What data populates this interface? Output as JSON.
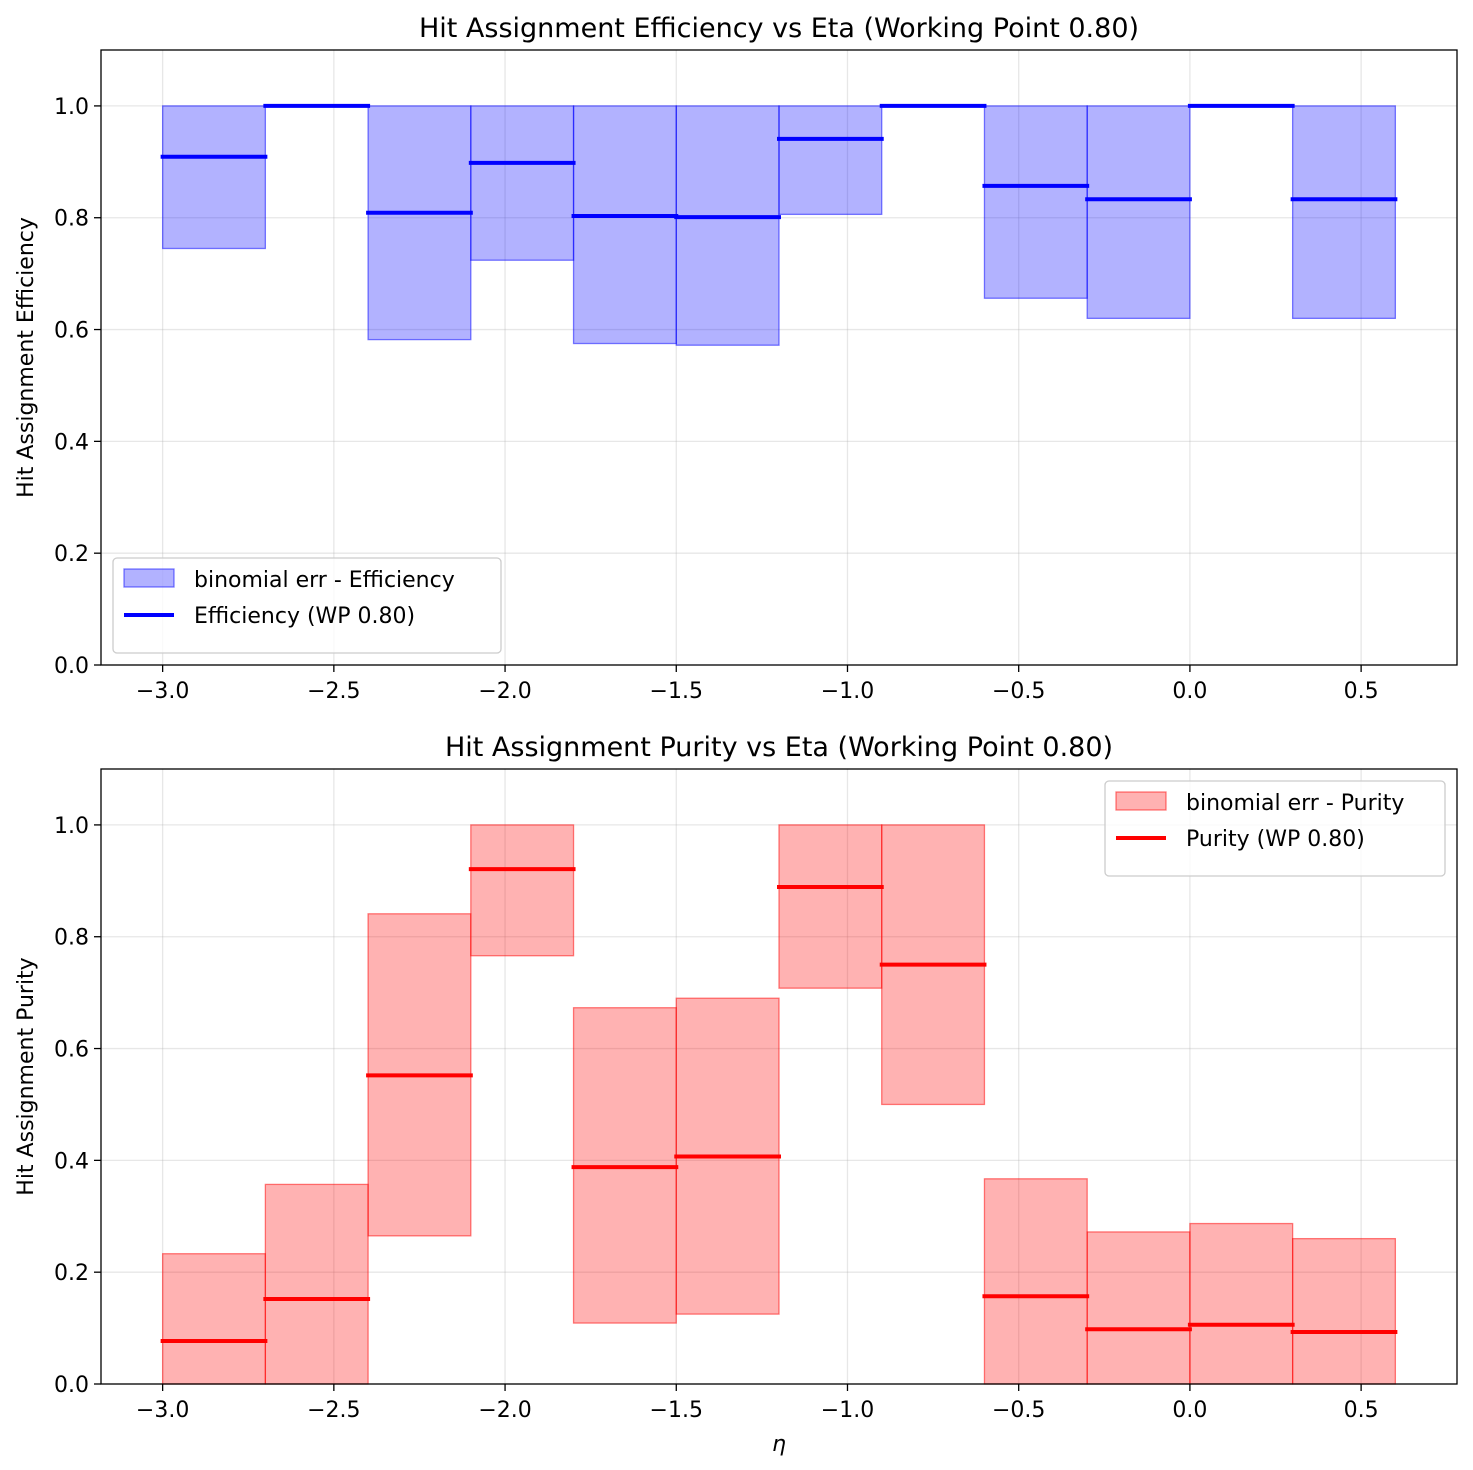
{
  "chart_data": [
    {
      "type": "bar",
      "title": "Hit Assignment Efficiency vs Eta (Working Point 0.80)",
      "xlabel": "",
      "ylabel": "Hit Assignment Efficiency",
      "xlim": [
        -3.18,
        0.78
      ],
      "ylim": [
        0.0,
        1.1
      ],
      "xticks": [
        -3.0,
        -2.5,
        -2.0,
        -1.5,
        -1.0,
        -0.5,
        0.0,
        0.5
      ],
      "xtick_labels": [
        "−3.0",
        "−2.5",
        "−2.0",
        "−1.5",
        "−1.0",
        "−0.5",
        "0.0",
        "0.5"
      ],
      "yticks": [
        0.0,
        0.2,
        0.4,
        0.6,
        0.8,
        1.0
      ],
      "ytick_labels": [
        "0.0",
        "0.2",
        "0.4",
        "0.6",
        "0.8",
        "1.0"
      ],
      "grid": true,
      "legend_loc": "lower-left",
      "fill_color": "#0000ff",
      "line_color": "#0000ff",
      "legend": [
        "binomial err - Efficiency",
        "Efficiency (WP 0.80)"
      ],
      "bins": [
        {
          "x0": -3.0,
          "x1": -2.7,
          "value": 0.909,
          "lo": 0.745,
          "hi": 1.0
        },
        {
          "x0": -2.7,
          "x1": -2.4,
          "value": 1.0,
          "lo": 1.0,
          "hi": 1.0
        },
        {
          "x0": -2.4,
          "x1": -2.1,
          "value": 0.809,
          "lo": 0.582,
          "hi": 1.0
        },
        {
          "x0": -2.1,
          "x1": -1.8,
          "value": 0.898,
          "lo": 0.724,
          "hi": 1.0
        },
        {
          "x0": -1.8,
          "x1": -1.5,
          "value": 0.803,
          "lo": 0.575,
          "hi": 1.0
        },
        {
          "x0": -1.5,
          "x1": -1.2,
          "value": 0.801,
          "lo": 0.572,
          "hi": 1.0
        },
        {
          "x0": -1.2,
          "x1": -0.9,
          "value": 0.941,
          "lo": 0.806,
          "hi": 1.0
        },
        {
          "x0": -0.9,
          "x1": -0.6,
          "value": 1.0,
          "lo": 1.0,
          "hi": 1.0
        },
        {
          "x0": -0.6,
          "x1": -0.3,
          "value": 0.857,
          "lo": 0.656,
          "hi": 1.0
        },
        {
          "x0": -0.3,
          "x1": 0.0,
          "value": 0.833,
          "lo": 0.62,
          "hi": 1.0
        },
        {
          "x0": 0.0,
          "x1": 0.3,
          "value": 1.0,
          "lo": 1.0,
          "hi": 1.0
        },
        {
          "x0": 0.3,
          "x1": 0.6,
          "value": 0.833,
          "lo": 0.62,
          "hi": 1.0
        }
      ]
    },
    {
      "type": "bar",
      "title": "Hit Assignment Purity vs Eta (Working Point 0.80)",
      "xlabel": "η",
      "ylabel": "Hit Assignment Purity",
      "xlim": [
        -3.18,
        0.78
      ],
      "ylim": [
        0.0,
        1.1
      ],
      "xticks": [
        -3.0,
        -2.5,
        -2.0,
        -1.5,
        -1.0,
        -0.5,
        0.0,
        0.5
      ],
      "xtick_labels": [
        "−3.0",
        "−2.5",
        "−2.0",
        "−1.5",
        "−1.0",
        "−0.5",
        "0.0",
        "0.5"
      ],
      "yticks": [
        0.0,
        0.2,
        0.4,
        0.6,
        0.8,
        1.0
      ],
      "ytick_labels": [
        "0.0",
        "0.2",
        "0.4",
        "0.6",
        "0.8",
        "1.0"
      ],
      "grid": true,
      "legend_loc": "upper-right",
      "fill_color": "#ff0000",
      "line_color": "#ff0000",
      "legend": [
        "binomial err - Purity",
        "Purity (WP 0.80)"
      ],
      "bins": [
        {
          "x0": -3.0,
          "x1": -2.7,
          "value": 0.077,
          "lo": 0.0,
          "hi": 0.233
        },
        {
          "x0": -2.7,
          "x1": -2.4,
          "value": 0.152,
          "lo": 0.0,
          "hi": 0.357
        },
        {
          "x0": -2.4,
          "x1": -2.1,
          "value": 0.552,
          "lo": 0.265,
          "hi": 0.841
        },
        {
          "x0": -2.1,
          "x1": -1.8,
          "value": 0.921,
          "lo": 0.766,
          "hi": 1.0
        },
        {
          "x0": -1.8,
          "x1": -1.5,
          "value": 0.388,
          "lo": 0.109,
          "hi": 0.673
        },
        {
          "x0": -1.5,
          "x1": -1.2,
          "value": 0.407,
          "lo": 0.125,
          "hi": 0.69
        },
        {
          "x0": -1.2,
          "x1": -0.9,
          "value": 0.889,
          "lo": 0.708,
          "hi": 1.0
        },
        {
          "x0": -0.9,
          "x1": -0.6,
          "value": 0.75,
          "lo": 0.5,
          "hi": 1.0
        },
        {
          "x0": -0.6,
          "x1": -0.3,
          "value": 0.157,
          "lo": 0.0,
          "hi": 0.367
        },
        {
          "x0": -0.3,
          "x1": 0.0,
          "value": 0.098,
          "lo": 0.0,
          "hi": 0.272
        },
        {
          "x0": 0.0,
          "x1": 0.3,
          "value": 0.106,
          "lo": 0.0,
          "hi": 0.287
        },
        {
          "x0": 0.3,
          "x1": 0.6,
          "value": 0.093,
          "lo": 0.0,
          "hi": 0.26
        }
      ]
    }
  ]
}
